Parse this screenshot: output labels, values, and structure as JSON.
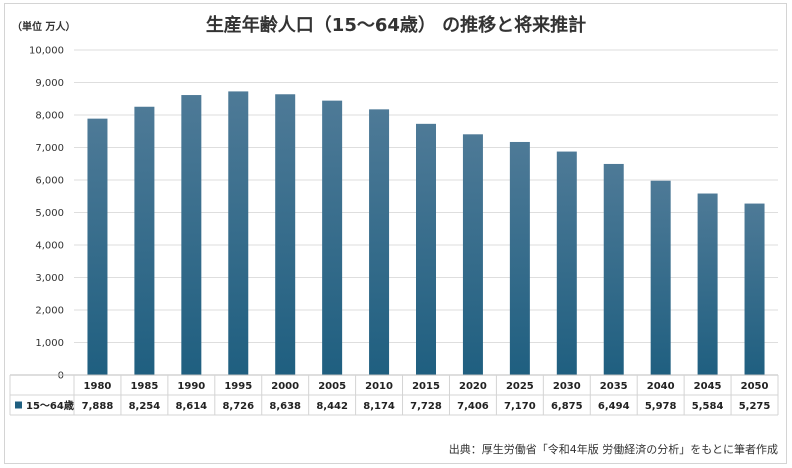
{
  "chart_data": {
    "type": "bar",
    "title": "生産年齢人口（15～64歳） の推移と将来推計",
    "unit_label": "（単位 万人）",
    "categories": [
      "1980",
      "1985",
      "1990",
      "1995",
      "2000",
      "2005",
      "2010",
      "2015",
      "2020",
      "2025",
      "2030",
      "2035",
      "2040",
      "2045",
      "2050"
    ],
    "series": [
      {
        "name": "15～64歳",
        "values": [
          7888,
          8254,
          8614,
          8726,
          8638,
          8442,
          8174,
          7728,
          7406,
          7170,
          6875,
          6494,
          5978,
          5584,
          5275
        ],
        "value_labels": [
          "7,888",
          "8,254",
          "8,614",
          "8,726",
          "8,638",
          "8,442",
          "8,174",
          "7,728",
          "7,406",
          "7,170",
          "6,875",
          "6,494",
          "5,978",
          "5,584",
          "5,275"
        ],
        "color": "#1f5f80"
      }
    ],
    "ylim": [
      0,
      10000
    ],
    "yticks": [
      0,
      1000,
      2000,
      3000,
      4000,
      5000,
      6000,
      7000,
      8000,
      9000,
      10000
    ],
    "ytick_labels": [
      "0",
      "1,000",
      "2,000",
      "3,000",
      "4,000",
      "5,000",
      "6,000",
      "7,000",
      "8,000",
      "9,000",
      "10,000"
    ],
    "grid": true,
    "legend": "data-table",
    "source": "出典：厚生労働省「令和4年版 労働経済の分析」をもとに筆者作成"
  }
}
